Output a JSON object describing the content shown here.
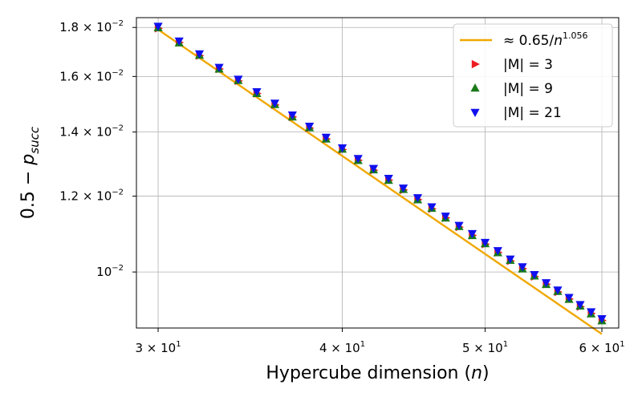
{
  "chart_data": {
    "type": "scatter",
    "xscale": "log",
    "yscale": "log",
    "xlim": [
      29,
      61.6
    ],
    "ylim": [
      0.00874,
      0.01843
    ],
    "xlabel_parts": [
      "Hypercube dimension (",
      "n",
      ")"
    ],
    "ylabel_parts": [
      "0.5 − ",
      "p",
      "succ"
    ],
    "xticks": [
      {
        "value": 30,
        "mantissa": "3",
        "exponent": "1"
      },
      {
        "value": 40,
        "mantissa": "4",
        "exponent": "1"
      },
      {
        "value": 50,
        "mantissa": "5",
        "exponent": "1"
      },
      {
        "value": 60,
        "mantissa": "6",
        "exponent": "1"
      }
    ],
    "yticks": [
      {
        "value": 0.01,
        "mantissa": "",
        "exponent": "−2"
      },
      {
        "value": 0.012,
        "mantissa": "1.2",
        "exponent": "−2"
      },
      {
        "value": 0.014,
        "mantissa": "1.4",
        "exponent": "−2"
      },
      {
        "value": 0.016,
        "mantissa": "1.6",
        "exponent": "−2"
      },
      {
        "value": 0.018,
        "mantissa": "1.8",
        "exponent": "−2"
      }
    ],
    "grid": true,
    "legend_position": "top-right",
    "fit": {
      "name": "fit",
      "label_prefix": "≈ 0.65/",
      "label_var": "n",
      "label_exp": "1.056",
      "coefficient": 0.65,
      "exponent": 1.056,
      "color": "#f0a800"
    },
    "x": [
      30,
      31,
      32,
      33,
      34,
      35,
      36,
      37,
      38,
      39,
      40,
      41,
      42,
      43,
      44,
      45,
      46,
      47,
      48,
      49,
      50,
      51,
      52,
      53,
      54,
      55,
      56,
      57,
      58,
      59,
      60
    ],
    "series": [
      {
        "name": "|M| = 3",
        "marker": "triangle-right",
        "color": "#ee1c25",
        "values": [
          0.01796,
          0.01736,
          0.01682,
          0.01629,
          0.01583,
          0.01536,
          0.01494,
          0.01452,
          0.01413,
          0.01377,
          0.01342,
          0.01308,
          0.01277,
          0.01247,
          0.01218,
          0.0119,
          0.01164,
          0.01139,
          0.01114,
          0.01092,
          0.01069,
          0.01048,
          0.01027,
          0.01008,
          0.00989,
          0.00971,
          0.00953,
          0.00937,
          0.0092,
          0.00905,
          0.0089
        ]
      },
      {
        "name": "|M| = 9",
        "marker": "triangle-up",
        "color": "#1a7a1a",
        "values": [
          0.01798,
          0.01734,
          0.01683,
          0.01628,
          0.01584,
          0.01535,
          0.01495,
          0.01451,
          0.01414,
          0.01376,
          0.01343,
          0.01307,
          0.01278,
          0.01246,
          0.01219,
          0.01189,
          0.01165,
          0.01138,
          0.01115,
          0.01091,
          0.0107,
          0.01047,
          0.01028,
          0.01007,
          0.0099,
          0.0097,
          0.00954,
          0.00936,
          0.00921,
          0.00904,
          0.00889
        ]
      },
      {
        "name": "|M| = 21",
        "marker": "triangle-down",
        "color": "#1010ee",
        "values": [
          0.01806,
          0.01743,
          0.0169,
          0.01636,
          0.0159,
          0.01543,
          0.01501,
          0.01459,
          0.0142,
          0.01383,
          0.01348,
          0.01314,
          0.01283,
          0.01253,
          0.01224,
          0.01196,
          0.0117,
          0.01144,
          0.01119,
          0.01097,
          0.01074,
          0.01053,
          0.01032,
          0.01013,
          0.00994,
          0.00975,
          0.00958,
          0.00941,
          0.00925,
          0.00909,
          0.00894
        ]
      }
    ]
  }
}
